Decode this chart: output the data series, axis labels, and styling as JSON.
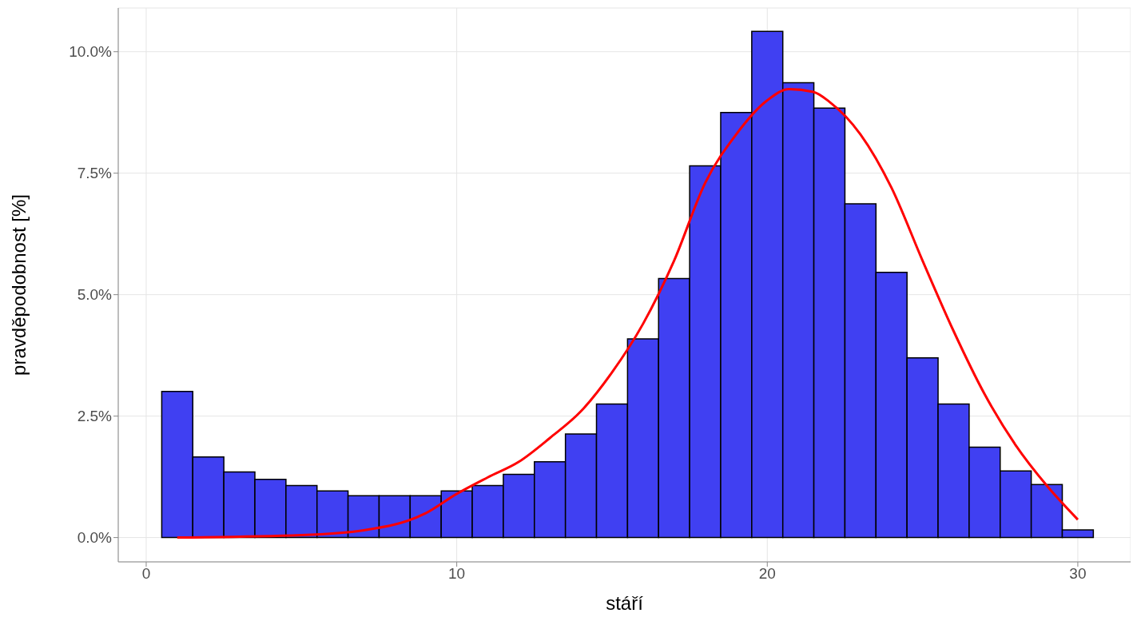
{
  "chart_data": {
    "type": "histogram",
    "xlabel": "stáří",
    "ylabel": "pravděpodobnost [%]",
    "bins": [
      0.5,
      1.5,
      2.5,
      3.5,
      4.5,
      5.5,
      6.5,
      7.5,
      8.5,
      9.5,
      10.5,
      11.5,
      12.5,
      13.5,
      14.5,
      15.5,
      16.5,
      17.5,
      18.5,
      19.5,
      20.5,
      21.5,
      22.5,
      23.5,
      24.5,
      25.5,
      26.5,
      27.5,
      28.5,
      29.5,
      30.5
    ],
    "values": [
      3.01,
      1.66,
      1.35,
      1.2,
      1.07,
      0.96,
      0.86,
      0.86,
      0.86,
      0.96,
      1.07,
      1.3,
      1.56,
      2.13,
      2.75,
      4.09,
      5.33,
      7.65,
      8.75,
      10.42,
      9.36,
      8.84,
      6.87,
      5.46,
      3.7,
      2.75,
      1.86,
      1.37,
      1.09,
      0.16
    ],
    "color": "#4040f2",
    "series": [
      {
        "type": "line",
        "color": "#ff0000",
        "x": [
          1,
          5,
          7,
          9,
          10,
          11,
          12,
          13,
          14,
          15,
          16,
          17,
          18,
          19,
          20,
          20.7,
          21.5,
          22,
          23,
          24,
          25,
          26,
          27,
          28,
          29,
          30
        ],
        "values": [
          0,
          0.05,
          0.15,
          0.5,
          0.9,
          1.24,
          1.56,
          2.05,
          2.6,
          3.4,
          4.4,
          5.7,
          7.3,
          8.3,
          9.0,
          9.23,
          9.17,
          8.97,
          8.3,
          7.2,
          5.7,
          4.25,
          2.95,
          1.9,
          1.07,
          0.37
        ]
      }
    ],
    "xlim": [
      -0.9,
      31.7
    ],
    "ylim": [
      -0.5,
      10.9
    ],
    "xticks": [
      0,
      10,
      20,
      30
    ],
    "yticks": [
      {
        "value": 0,
        "label": "0.0%"
      },
      {
        "value": 2.5,
        "label": "2.5%"
      },
      {
        "value": 5,
        "label": "5.0%"
      },
      {
        "value": 7.5,
        "label": "7.5%"
      },
      {
        "value": 10,
        "label": "10.0%"
      }
    ],
    "grid": true
  }
}
